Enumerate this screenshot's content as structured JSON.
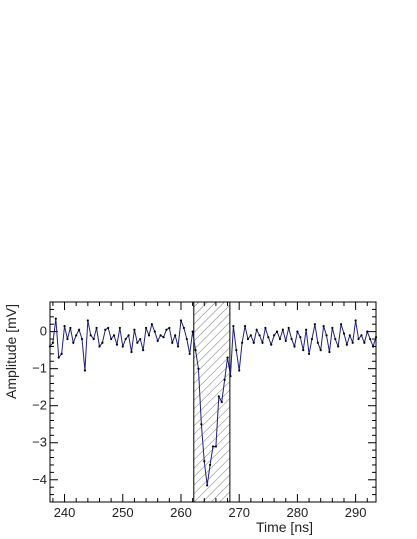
{
  "chart_data": {
    "type": "line",
    "title": "",
    "xlabel": "Time [ns]",
    "ylabel": "Amplitude [mV]",
    "xlim": [
      237.5,
      293.5
    ],
    "ylim": [
      -4.6,
      0.8
    ],
    "x_ticks": [
      240,
      250,
      260,
      270,
      280,
      290
    ],
    "x_tick_labels": [
      "240",
      "250",
      "260",
      "270",
      "280",
      "290"
    ],
    "y_ticks": [
      0,
      -1,
      -2,
      -3,
      -4
    ],
    "y_tick_labels": [
      "0",
      "−1",
      "−2",
      "−3",
      "−4"
    ],
    "shaded_region": {
      "x_start": 262.2,
      "x_end": 268.4
    },
    "line_color": "#1f1f7a",
    "grid": false,
    "series": [
      {
        "x": [
          237.5,
          238.0,
          238.5,
          239.0,
          239.5,
          240.0,
          240.5,
          241.0,
          241.5,
          242.0,
          242.5,
          243.0,
          243.5,
          244.0,
          244.5,
          245.0,
          245.5,
          246.0,
          246.5,
          247.0,
          247.5,
          248.0,
          248.5,
          249.0,
          249.5,
          250.0,
          250.5,
          251.0,
          251.5,
          252.0,
          252.5,
          253.0,
          253.5,
          254.0,
          254.5,
          255.0,
          255.5,
          256.0,
          256.5,
          257.0,
          257.5,
          258.0,
          258.5,
          259.0,
          259.5,
          260.0,
          260.5,
          261.0,
          261.5,
          262.0,
          262.5,
          263.0,
          263.5,
          264.0,
          264.5,
          265.0,
          265.5,
          266.0,
          266.5,
          267.0,
          267.5,
          268.0,
          268.5,
          269.0,
          269.5,
          270.0,
          270.5,
          271.0,
          271.5,
          272.0,
          272.5,
          273.0,
          273.5,
          274.0,
          274.5,
          275.0,
          275.5,
          276.0,
          276.5,
          277.0,
          277.5,
          278.0,
          278.5,
          279.0,
          279.5,
          280.0,
          280.5,
          281.0,
          281.5,
          282.0,
          282.5,
          283.0,
          283.5,
          284.0,
          284.5,
          285.0,
          285.5,
          286.0,
          286.5,
          287.0,
          287.5,
          288.0,
          288.5,
          289.0,
          289.5,
          290.0,
          290.5,
          291.0,
          291.5,
          292.0,
          292.5,
          293.0,
          293.5
        ],
        "y": [
          -0.4,
          -0.3,
          0.35,
          -0.7,
          -0.6,
          0.15,
          -0.2,
          0.1,
          -0.3,
          -0.1,
          0.05,
          -0.2,
          -1.05,
          0.3,
          -0.1,
          -0.2,
          0.1,
          -0.4,
          -0.3,
          0.05,
          0.1,
          -0.2,
          -0.1,
          -0.35,
          0.1,
          -0.4,
          -0.2,
          -0.1,
          -0.55,
          0.05,
          -0.3,
          -0.2,
          -0.5,
          0.1,
          -0.1,
          0.2,
          0.0,
          -0.25,
          -0.1,
          -0.15,
          0.05,
          0.1,
          -0.3,
          -0.1,
          -0.4,
          0.3,
          0.1,
          -0.2,
          -0.6,
          0.0,
          -0.5,
          -1.0,
          -2.5,
          -3.5,
          -4.15,
          -3.6,
          -3.1,
          -3.1,
          -1.75,
          -1.9,
          -1.3,
          -0.7,
          -1.2,
          0.15,
          -0.5,
          -1.05,
          -0.3,
          0.15,
          -0.2,
          -0.1,
          -0.3,
          0.05,
          -0.1,
          -0.3,
          0.1,
          -0.15,
          -0.35,
          -0.1,
          0.0,
          -0.2,
          0.05,
          -0.25,
          0.1,
          -0.2,
          -0.4,
          0.0,
          -0.15,
          -0.5,
          0.05,
          -0.6,
          -0.2,
          0.2,
          -0.3,
          -0.5,
          0.15,
          -0.1,
          -0.55,
          0.1,
          -0.2,
          -0.4,
          0.2,
          -0.05,
          -0.35,
          -0.1,
          -0.3,
          0.3,
          -0.2,
          -0.1,
          -0.3,
          0.0,
          -0.2,
          -0.4,
          -0.15
        ]
      }
    ]
  }
}
